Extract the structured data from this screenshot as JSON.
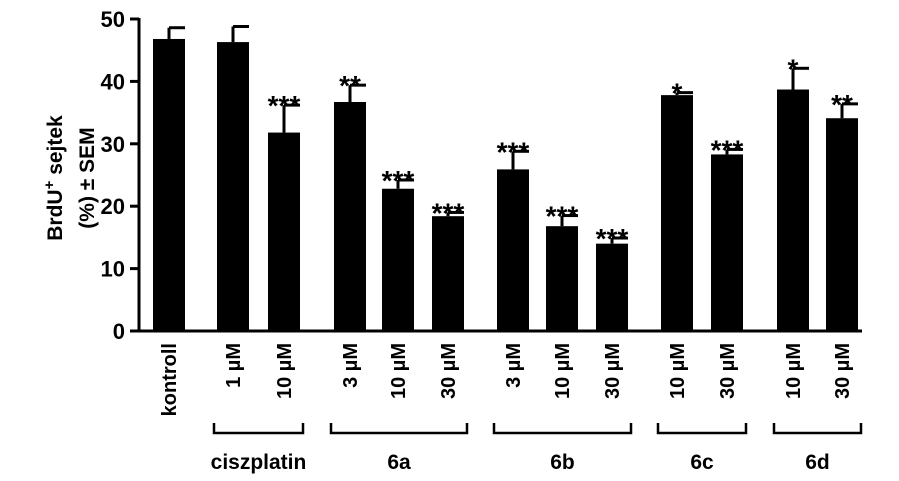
{
  "chart_data": {
    "type": "bar",
    "ylabel_line1_main": "BrdU",
    "ylabel_line1_sup": "+",
    "ylabel_line1_tail": " sejtek",
    "ylabel_line2": "(%) ± SEM",
    "ylim": [
      0,
      50
    ],
    "yticks": [
      "0",
      "10",
      "20",
      "30",
      "40",
      "50"
    ],
    "bars": [
      {
        "label": "kontroll",
        "value": 46.8,
        "sem": 1.8,
        "sig": ""
      },
      {
        "label": "1  µM",
        "value": 46.3,
        "sem": 2.5,
        "sig": ""
      },
      {
        "label": "10  µM",
        "value": 31.8,
        "sem": 4.4,
        "sig": "***"
      },
      {
        "label": "3  µM",
        "value": 36.7,
        "sem": 2.7,
        "sig": "**"
      },
      {
        "label": "10  µM",
        "value": 22.8,
        "sem": 1.4,
        "sig": "***"
      },
      {
        "label": "30  µM",
        "value": 18.4,
        "sem": 0.6,
        "sig": "***"
      },
      {
        "label": "3  µM",
        "value": 25.9,
        "sem": 2.9,
        "sig": "***"
      },
      {
        "label": "10  µM",
        "value": 16.8,
        "sem": 1.7,
        "sig": "***"
      },
      {
        "label": "30  µM",
        "value": 14.0,
        "sem": 0.9,
        "sig": "***"
      },
      {
        "label": "10  µM",
        "value": 37.8,
        "sem": 0.4,
        "sig": "*"
      },
      {
        "label": "30  µM",
        "value": 28.3,
        "sem": 0.8,
        "sig": "***"
      },
      {
        "label": "10  µM",
        "value": 38.7,
        "sem": 3.4,
        "sig": "*"
      },
      {
        "label": "30  µM",
        "value": 34.1,
        "sem": 2.3,
        "sig": "**"
      }
    ],
    "groups": [
      {
        "label": "ciszplatin",
        "from": 1,
        "to": 2
      },
      {
        "label": "6a",
        "from": 3,
        "to": 5
      },
      {
        "label": "6b",
        "from": 6,
        "to": 8
      },
      {
        "label": "6c",
        "from": 9,
        "to": 10
      },
      {
        "label": "6d",
        "from": 11,
        "to": 12
      }
    ]
  }
}
